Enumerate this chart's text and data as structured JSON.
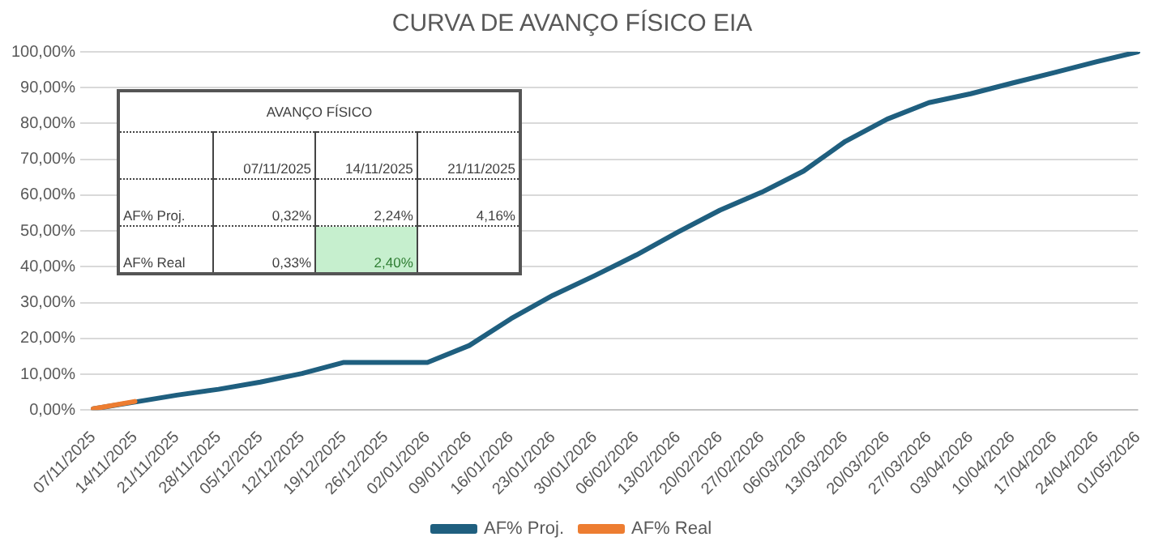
{
  "chart_data": {
    "type": "line",
    "title": "CURVA DE AVANÇO FÍSICO EIA",
    "categories": [
      "07/11/2025",
      "14/11/2025",
      "21/11/2025",
      "28/11/2025",
      "05/12/2025",
      "12/12/2025",
      "19/12/2025",
      "26/12/2025",
      "02/01/2026",
      "09/01/2026",
      "16/01/2026",
      "23/01/2026",
      "30/01/2026",
      "06/02/2026",
      "13/02/2026",
      "20/02/2026",
      "27/02/2026",
      "06/03/2026",
      "13/03/2026",
      "20/03/2026",
      "27/03/2026",
      "03/04/2026",
      "10/04/2026",
      "17/04/2026",
      "24/04/2026",
      "01/05/2026"
    ],
    "series": [
      {
        "name": "AF% Proj.",
        "color": "#1f5f7f",
        "values": [
          0.32,
          2.24,
          4.16,
          5.8,
          7.8,
          10.2,
          13.3,
          13.3,
          13.3,
          18,
          25.5,
          32,
          37.5,
          43.3,
          49.7,
          55.8,
          60.8,
          66.7,
          75,
          81.2,
          85.8,
          88.3,
          91.3,
          94.2,
          97.2,
          100
        ]
      },
      {
        "name": "AF% Real",
        "color": "#ed7d31",
        "values": [
          0.33,
          2.4,
          null,
          null,
          null,
          null,
          null,
          null,
          null,
          null,
          null,
          null,
          null,
          null,
          null,
          null,
          null,
          null,
          null,
          null,
          null,
          null,
          null,
          null,
          null,
          null
        ]
      }
    ],
    "ylim": [
      0,
      100
    ],
    "yticks": [
      {
        "value": 0,
        "label": "0,00%"
      },
      {
        "value": 10,
        "label": "10,00%"
      },
      {
        "value": 20,
        "label": "20,00%"
      },
      {
        "value": 30,
        "label": "30,00%"
      },
      {
        "value": 40,
        "label": "40,00%"
      },
      {
        "value": 50,
        "label": "50,00%"
      },
      {
        "value": 60,
        "label": "60,00%"
      },
      {
        "value": 70,
        "label": "70,00%"
      },
      {
        "value": 80,
        "label": "80,00%"
      },
      {
        "value": 90,
        "label": "90,00%"
      },
      {
        "value": 100,
        "label": "100,00%"
      }
    ],
    "grid": "y",
    "legend": "bottom",
    "marker": "none",
    "line_style": "solid",
    "annotations": [
      "AVANÇO FÍSICO",
      "07/11/2025",
      "14/11/2025",
      "21/11/2025",
      "AF% Proj.",
      "0,32%",
      "2,24%",
      "4,16%",
      "AF% Real",
      "0,33%",
      "2,40%"
    ]
  }
}
